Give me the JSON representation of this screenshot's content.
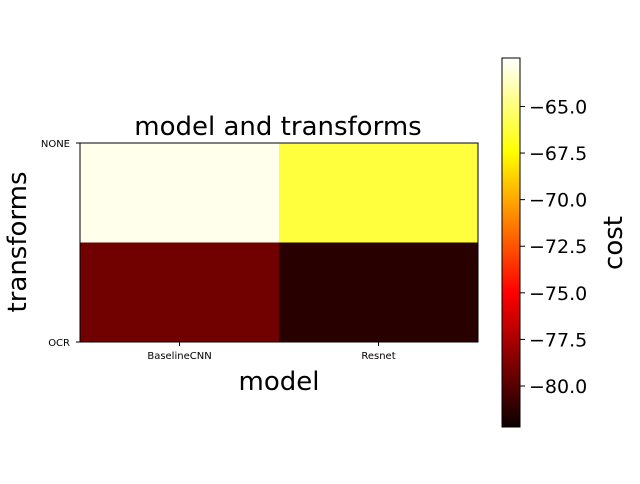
{
  "chart_data": {
    "type": "heatmap",
    "title": "model and transforms",
    "xlabel": "model",
    "ylabel": "transforms",
    "x_categories": [
      "BaselineCNN",
      "Resnet"
    ],
    "y_tick_labels": [
      "NONE",
      "OCR"
    ],
    "rows": [
      {
        "label": "NONE",
        "values": [
          -62.8,
          -66.2
        ]
      },
      {
        "label": "OCR",
        "values": [
          -79.6,
          -81.8
        ]
      }
    ],
    "colorbar": {
      "label": "cost",
      "colormap": "hot",
      "vmin": -82.2,
      "vmax": -62.4,
      "ticks": [
        -65.0,
        -67.5,
        -70.0,
        -72.5,
        -75.0,
        -77.5,
        -80.0
      ],
      "tick_labels": [
        "−65.0",
        "−67.5",
        "−70.0",
        "−72.5",
        "−75.0",
        "−77.5",
        "−80.0"
      ]
    }
  }
}
